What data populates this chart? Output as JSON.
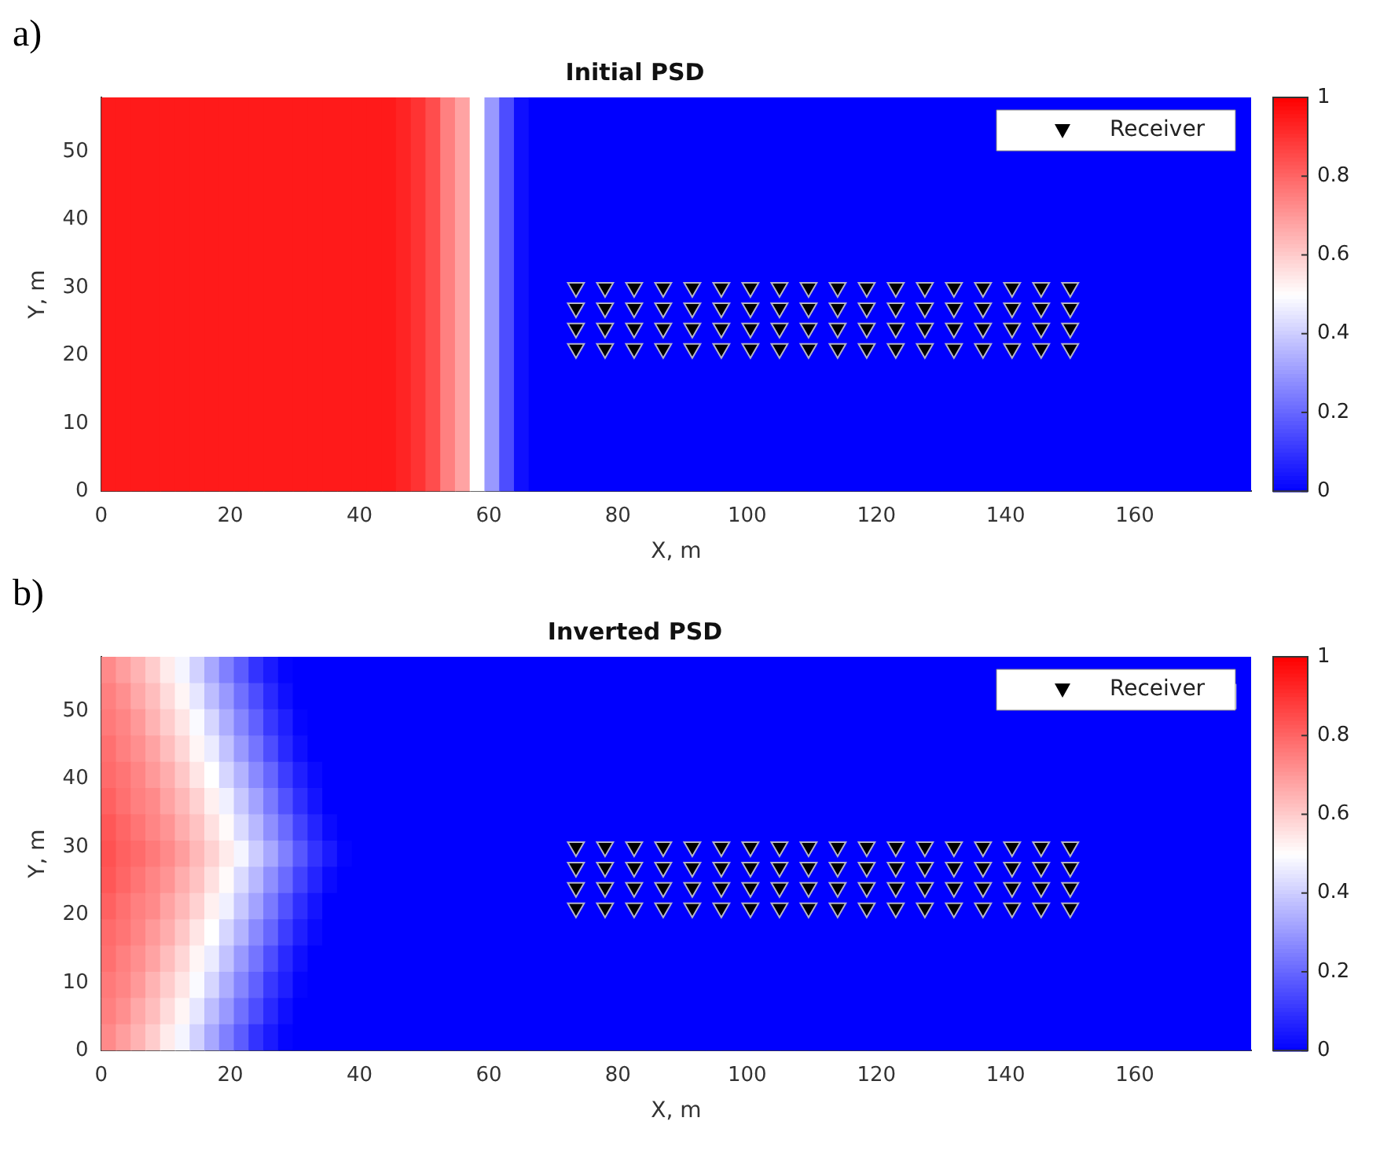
{
  "chart_data": [
    {
      "type": "heatmap",
      "title": "Initial PSD",
      "xlabel": "X, m",
      "ylabel": "Y, m",
      "annotations": [
        "a)"
      ],
      "xlim": [
        0,
        178
      ],
      "ylim": [
        0,
        58
      ],
      "xticks": [
        0,
        20,
        40,
        60,
        80,
        100,
        120,
        140,
        160
      ],
      "yticks": [
        0,
        10,
        20,
        30,
        40,
        50
      ],
      "clim": [
        0,
        1
      ],
      "cticks": [
        0,
        0.2,
        0.4,
        0.6,
        0.8,
        1
      ],
      "legend": "top right",
      "marker": "triangle",
      "cells": [
        [
          0.95,
          0.95,
          0.95,
          0.95,
          0.95,
          0.95,
          0.95,
          0.95,
          0.95,
          0.95,
          0.95,
          0.95,
          0.95,
          0.95,
          0.95,
          0.95,
          0.95,
          0.95,
          0.95,
          0.95,
          0.93,
          0.9,
          0.85,
          0.75,
          0.68,
          0.5,
          0.3,
          0.15,
          0.03,
          0,
          0,
          0,
          0,
          0,
          0,
          0,
          0,
          0,
          0,
          0,
          0,
          0,
          0,
          0,
          0,
          0,
          0,
          0,
          0,
          0,
          0,
          0,
          0,
          0,
          0,
          0,
          0,
          0,
          0,
          0,
          0,
          0,
          0,
          0,
          0,
          0,
          0,
          0,
          0,
          0,
          0,
          0,
          0,
          0,
          0,
          0,
          0,
          0
        ]
      ],
      "series": [
        {
          "type": "scatter",
          "name": "Receiver",
          "color": "#000000",
          "x": [
            73.5,
            78,
            82.5,
            87,
            91.5,
            96,
            100.5,
            105,
            109.5,
            114,
            118.5,
            123,
            127.5,
            132,
            136.5,
            141,
            145.5,
            150,
            73.5,
            78,
            82.5,
            87,
            91.5,
            96,
            100.5,
            105,
            109.5,
            114,
            118.5,
            123,
            127.5,
            132,
            136.5,
            141,
            145.5,
            150,
            73.5,
            78,
            82.5,
            87,
            91.5,
            96,
            100.5,
            105,
            109.5,
            114,
            118.5,
            123,
            127.5,
            132,
            136.5,
            141,
            145.5,
            150,
            73.5,
            78,
            82.5,
            87,
            91.5,
            96,
            100.5,
            105,
            109.5,
            114,
            118.5,
            123,
            127.5,
            132,
            136.5,
            141,
            145.5,
            150
          ],
          "values": [
            30,
            30,
            30,
            30,
            30,
            30,
            30,
            30,
            30,
            30,
            30,
            30,
            30,
            30,
            30,
            30,
            30,
            30,
            27,
            27,
            27,
            27,
            27,
            27,
            27,
            27,
            27,
            27,
            27,
            27,
            27,
            27,
            27,
            27,
            27,
            27,
            24,
            24,
            24,
            24,
            24,
            24,
            24,
            24,
            24,
            24,
            24,
            24,
            24,
            24,
            24,
            24,
            24,
            24,
            21,
            21,
            21,
            21,
            21,
            21,
            21,
            21,
            21,
            21,
            21,
            21,
            21,
            21,
            21,
            21,
            21,
            21
          ]
        }
      ]
    },
    {
      "type": "heatmap",
      "title": "Inverted PSD",
      "xlabel": "X, m",
      "ylabel": "Y, m",
      "annotations": [
        "b)"
      ],
      "xlim": [
        0,
        178
      ],
      "ylim": [
        0,
        58
      ],
      "xticks": [
        0,
        20,
        40,
        60,
        80,
        100,
        120,
        140,
        160
      ],
      "yticks": [
        0,
        10,
        20,
        30,
        40,
        50
      ],
      "clim": [
        0,
        1
      ],
      "cticks": [
        0,
        0.2,
        0.4,
        0.6,
        0.8,
        1
      ],
      "legend": "top right",
      "marker": "triangle",
      "cells": [
        [
          0.73,
          0.69,
          0.65,
          0.6,
          0.54,
          0.48,
          0.41,
          0.33,
          0.25,
          0.18,
          0.1,
          0.05,
          0.01,
          0,
          0,
          0,
          0,
          0,
          0,
          0,
          0,
          0,
          0,
          0,
          0,
          0,
          0,
          0,
          0,
          0,
          0,
          0,
          0,
          0,
          0,
          0,
          0,
          0,
          0,
          0,
          0,
          0,
          0,
          0,
          0,
          0,
          0,
          0,
          0,
          0,
          0,
          0,
          0,
          0,
          0,
          0,
          0,
          0,
          0,
          0,
          0,
          0,
          0,
          0,
          0,
          0,
          0,
          0,
          0,
          0,
          0,
          0,
          0,
          0,
          0,
          0,
          0,
          0
        ],
        [
          0.75,
          0.72,
          0.67,
          0.63,
          0.57,
          0.52,
          0.45,
          0.37,
          0.3,
          0.22,
          0.15,
          0.08,
          0.03,
          0,
          0,
          0,
          0,
          0,
          0,
          0,
          0,
          0,
          0,
          0,
          0,
          0,
          0,
          0,
          0,
          0,
          0,
          0,
          0,
          0,
          0,
          0,
          0,
          0,
          0,
          0,
          0,
          0,
          0,
          0,
          0,
          0,
          0,
          0,
          0,
          0,
          0,
          0,
          0,
          0,
          0,
          0,
          0,
          0,
          0,
          0,
          0,
          null,
          null,
          null,
          null,
          null,
          null,
          null,
          null,
          null,
          null,
          null,
          null,
          null,
          null,
          null,
          null,
          0
        ],
        [
          0.76,
          0.74,
          0.7,
          0.65,
          0.6,
          0.55,
          0.49,
          0.42,
          0.34,
          0.26,
          0.19,
          0.11,
          0.06,
          0.01,
          0,
          0,
          0,
          0,
          0,
          0,
          0,
          0,
          0,
          0,
          0,
          0,
          0,
          0,
          0,
          0,
          0,
          0,
          0,
          0,
          0,
          0,
          0,
          0,
          0,
          0,
          0,
          0,
          0,
          0,
          0,
          0,
          0,
          0,
          0,
          0,
          0,
          0,
          0,
          0,
          0,
          0,
          0,
          0,
          0,
          0,
          0,
          0,
          0,
          0,
          0,
          0,
          0,
          0,
          0,
          0,
          0,
          0,
          0,
          0,
          0,
          0,
          0,
          0
        ],
        [
          0.78,
          0.75,
          0.72,
          0.68,
          0.63,
          0.58,
          0.52,
          0.46,
          0.38,
          0.3,
          0.23,
          0.15,
          0.08,
          0.03,
          0,
          0,
          0,
          0,
          0,
          0,
          0,
          0,
          0,
          0,
          0,
          0,
          0,
          0,
          0,
          0,
          0,
          0,
          0,
          0,
          0,
          0,
          0,
          0,
          0,
          0,
          0,
          0,
          0,
          0,
          0,
          0,
          0,
          0,
          0,
          0,
          0,
          0,
          0,
          0,
          0,
          0,
          0,
          0,
          0,
          0,
          0,
          0,
          0,
          0,
          0,
          0,
          0,
          0,
          0,
          0,
          0,
          0,
          0,
          0,
          0,
          0,
          0,
          0
        ],
        [
          0.79,
          0.77,
          0.74,
          0.7,
          0.66,
          0.61,
          0.55,
          0.5,
          0.42,
          0.35,
          0.27,
          0.2,
          0.12,
          0.06,
          0.02,
          0,
          0,
          0,
          0,
          0,
          0,
          0,
          0,
          0,
          0,
          0,
          0,
          0,
          0,
          0,
          0,
          0,
          0,
          0,
          0,
          0,
          0,
          0,
          0,
          0,
          0,
          0,
          0,
          0,
          0,
          0,
          0,
          0,
          0,
          0,
          0,
          0,
          0,
          0,
          0,
          0,
          0,
          0,
          0,
          0,
          0,
          0,
          0,
          0,
          0,
          0,
          0,
          0,
          0,
          0,
          0,
          0,
          0,
          0,
          0,
          0,
          0,
          0
        ],
        [
          0.81,
          0.78,
          0.75,
          0.73,
          0.68,
          0.64,
          0.59,
          0.53,
          0.47,
          0.39,
          0.32,
          0.24,
          0.16,
          0.09,
          0.04,
          0,
          0,
          0,
          0,
          0,
          0,
          0,
          0,
          0,
          0,
          0,
          0,
          0,
          0,
          0,
          0,
          0,
          0,
          0,
          0,
          0,
          0,
          0,
          0,
          0,
          0,
          0,
          0,
          0,
          0,
          0,
          0,
          0,
          0,
          0,
          0,
          0,
          0,
          0,
          0,
          0,
          0,
          0,
          0,
          0,
          0,
          0,
          0,
          0,
          0,
          0,
          0,
          0,
          0,
          0,
          0,
          0,
          0,
          0,
          0,
          0,
          0,
          0
        ],
        [
          0.83,
          0.8,
          0.77,
          0.74,
          0.71,
          0.66,
          0.62,
          0.56,
          0.51,
          0.43,
          0.36,
          0.28,
          0.21,
          0.13,
          0.07,
          0.02,
          0,
          0,
          0,
          0,
          0,
          0,
          0,
          0,
          0,
          0,
          0,
          0,
          0,
          0,
          0,
          0,
          0,
          0,
          0,
          0,
          0,
          0,
          0,
          0,
          0,
          0,
          0,
          0,
          0,
          0,
          0,
          0,
          0,
          0,
          0,
          0,
          0,
          0,
          0,
          0,
          0,
          0,
          0,
          0,
          0,
          0,
          0,
          0,
          0,
          0,
          0,
          0,
          0,
          0,
          0,
          0,
          0,
          0,
          0,
          0,
          0,
          0
        ],
        [
          0.84,
          0.81,
          0.79,
          0.76,
          0.73,
          0.69,
          0.64,
          0.59,
          0.54,
          0.48,
          0.4,
          0.33,
          0.25,
          0.17,
          0.1,
          0.05,
          0.01,
          0,
          0,
          0,
          0,
          0,
          0,
          0,
          0,
          0,
          0,
          0,
          0,
          0,
          0,
          0,
          0,
          0,
          0,
          0,
          0,
          0,
          0,
          0,
          0,
          0,
          0,
          0,
          0,
          0,
          0,
          0,
          0,
          0,
          0,
          0,
          0,
          0,
          0,
          0,
          0,
          0,
          0,
          0,
          0,
          0,
          0,
          0,
          0,
          0,
          0,
          0,
          0,
          0,
          0,
          0,
          0,
          0,
          0,
          0,
          0,
          0
        ],
        [
          0.83,
          0.8,
          0.77,
          0.74,
          0.71,
          0.66,
          0.62,
          0.56,
          0.51,
          0.43,
          0.36,
          0.28,
          0.21,
          0.13,
          0.07,
          0.02,
          0,
          0,
          0,
          0,
          0,
          0,
          0,
          0,
          0,
          0,
          0,
          0,
          0,
          0,
          0,
          0,
          0,
          0,
          0,
          0,
          0,
          0,
          0,
          0,
          0,
          0,
          0,
          0,
          0,
          0,
          0,
          0,
          0,
          0,
          0,
          0,
          0,
          0,
          0,
          0,
          0,
          0,
          0,
          0,
          0,
          0,
          0,
          0,
          0,
          0,
          0,
          0,
          0,
          0,
          0,
          0,
          0,
          0,
          0,
          0,
          0,
          0
        ],
        [
          0.81,
          0.78,
          0.75,
          0.73,
          0.68,
          0.64,
          0.59,
          0.53,
          0.47,
          0.39,
          0.32,
          0.24,
          0.16,
          0.09,
          0.04,
          0,
          0,
          0,
          0,
          0,
          0,
          0,
          0,
          0,
          0,
          0,
          0,
          0,
          0,
          0,
          0,
          0,
          0,
          0,
          0,
          0,
          0,
          0,
          0,
          0,
          0,
          0,
          0,
          0,
          0,
          0,
          0,
          0,
          0,
          0,
          0,
          0,
          0,
          0,
          0,
          0,
          0,
          0,
          0,
          0,
          0,
          0,
          0,
          0,
          0,
          0,
          0,
          0,
          0,
          0,
          0,
          0,
          0,
          0,
          0,
          0,
          0,
          0
        ],
        [
          0.79,
          0.77,
          0.74,
          0.7,
          0.66,
          0.61,
          0.55,
          0.5,
          0.42,
          0.35,
          0.27,
          0.2,
          0.12,
          0.06,
          0.02,
          0,
          0,
          0,
          0,
          0,
          0,
          0,
          0,
          0,
          0,
          0,
          0,
          0,
          0,
          0,
          0,
          0,
          0,
          0,
          0,
          0,
          0,
          0,
          0,
          0,
          0,
          0,
          0,
          0,
          0,
          0,
          0,
          0,
          0,
          0,
          0,
          0,
          0,
          0,
          0,
          0,
          0,
          0,
          0,
          0,
          0,
          0,
          0,
          0,
          0,
          0,
          0,
          0,
          0,
          0,
          0,
          0,
          0,
          0,
          0,
          0,
          0,
          0
        ],
        [
          0.78,
          0.75,
          0.72,
          0.68,
          0.63,
          0.58,
          0.52,
          0.46,
          0.38,
          0.3,
          0.23,
          0.15,
          0.08,
          0.03,
          0,
          0,
          0,
          0,
          0,
          0,
          0,
          0,
          0,
          0,
          0,
          0,
          0,
          0,
          0,
          0,
          0,
          0,
          0,
          0,
          0,
          0,
          0,
          0,
          0,
          0,
          0,
          0,
          0,
          0,
          0,
          0,
          0,
          0,
          0,
          0,
          0,
          0,
          0,
          0,
          0,
          0,
          0,
          0,
          0,
          0,
          0,
          0,
          0,
          0,
          0,
          0,
          0,
          0,
          0,
          0,
          0,
          0,
          0,
          0,
          0,
          0,
          0,
          0
        ],
        [
          0.76,
          0.74,
          0.7,
          0.65,
          0.6,
          0.55,
          0.49,
          0.42,
          0.34,
          0.26,
          0.19,
          0.11,
          0.06,
          0.01,
          0,
          0,
          0,
          0,
          0,
          0,
          0,
          0,
          0,
          0,
          0,
          0,
          0,
          0,
          0,
          0,
          0,
          0,
          0,
          0,
          0,
          0,
          0,
          0,
          0,
          0,
          0,
          0,
          0,
          0,
          0,
          0,
          0,
          0,
          0,
          0,
          0,
          0,
          0,
          0,
          0,
          0,
          0,
          0,
          0,
          0,
          0,
          0,
          0,
          0,
          0,
          0,
          0,
          0,
          0,
          0,
          0,
          0,
          0,
          0,
          0,
          0,
          0,
          0
        ],
        [
          0.75,
          0.72,
          0.67,
          0.63,
          0.57,
          0.52,
          0.45,
          0.37,
          0.3,
          0.22,
          0.15,
          0.08,
          0.03,
          0,
          0,
          0,
          0,
          0,
          0,
          0,
          0,
          0,
          0,
          0,
          0,
          0,
          0,
          0,
          0,
          0,
          0,
          0,
          0,
          0,
          0,
          0,
          0,
          0,
          0,
          0,
          0,
          0,
          0,
          0,
          0,
          0,
          0,
          0,
          0,
          0,
          0,
          0,
          0,
          0,
          0,
          0,
          0,
          0,
          0,
          0,
          0,
          0,
          0,
          0,
          0,
          0,
          0,
          0,
          0,
          0,
          0,
          0,
          0,
          0,
          0,
          0,
          0,
          0
        ],
        [
          0.73,
          0.69,
          0.65,
          0.6,
          0.54,
          0.48,
          0.41,
          0.33,
          0.25,
          0.18,
          0.1,
          0.05,
          0.01,
          0,
          0,
          0,
          0,
          0,
          0,
          0,
          0,
          0,
          0,
          0,
          0,
          0,
          0,
          0,
          0,
          0,
          0,
          0,
          0,
          0,
          0,
          0,
          0,
          0,
          0,
          0,
          0,
          0,
          0,
          0,
          0,
          0,
          0,
          0,
          0,
          0,
          0,
          0,
          0,
          0,
          0,
          0,
          0,
          0,
          0,
          0,
          0,
          0,
          0,
          0,
          0,
          0,
          0,
          0,
          0,
          0,
          0,
          0,
          0,
          0,
          0,
          0,
          0,
          0
        ]
      ],
      "series": [
        {
          "type": "scatter",
          "name": "Receiver",
          "color": "#000000",
          "x": [
            73.5,
            78,
            82.5,
            87,
            91.5,
            96,
            100.5,
            105,
            109.5,
            114,
            118.5,
            123,
            127.5,
            132,
            136.5,
            141,
            145.5,
            150,
            73.5,
            78,
            82.5,
            87,
            91.5,
            96,
            100.5,
            105,
            109.5,
            114,
            118.5,
            123,
            127.5,
            132,
            136.5,
            141,
            145.5,
            150,
            73.5,
            78,
            82.5,
            87,
            91.5,
            96,
            100.5,
            105,
            109.5,
            114,
            118.5,
            123,
            127.5,
            132,
            136.5,
            141,
            145.5,
            150,
            73.5,
            78,
            82.5,
            87,
            91.5,
            96,
            100.5,
            105,
            109.5,
            114,
            118.5,
            123,
            127.5,
            132,
            136.5,
            141,
            145.5,
            150
          ],
          "values": [
            30,
            30,
            30,
            30,
            30,
            30,
            30,
            30,
            30,
            30,
            30,
            30,
            30,
            30,
            30,
            30,
            30,
            30,
            27,
            27,
            27,
            27,
            27,
            27,
            27,
            27,
            27,
            27,
            27,
            27,
            27,
            27,
            27,
            27,
            27,
            27,
            24,
            24,
            24,
            24,
            24,
            24,
            24,
            24,
            24,
            24,
            24,
            24,
            24,
            24,
            24,
            24,
            24,
            24,
            21,
            21,
            21,
            21,
            21,
            21,
            21,
            21,
            21,
            21,
            21,
            21,
            21,
            21,
            21,
            21,
            21,
            21
          ]
        }
      ]
    }
  ]
}
